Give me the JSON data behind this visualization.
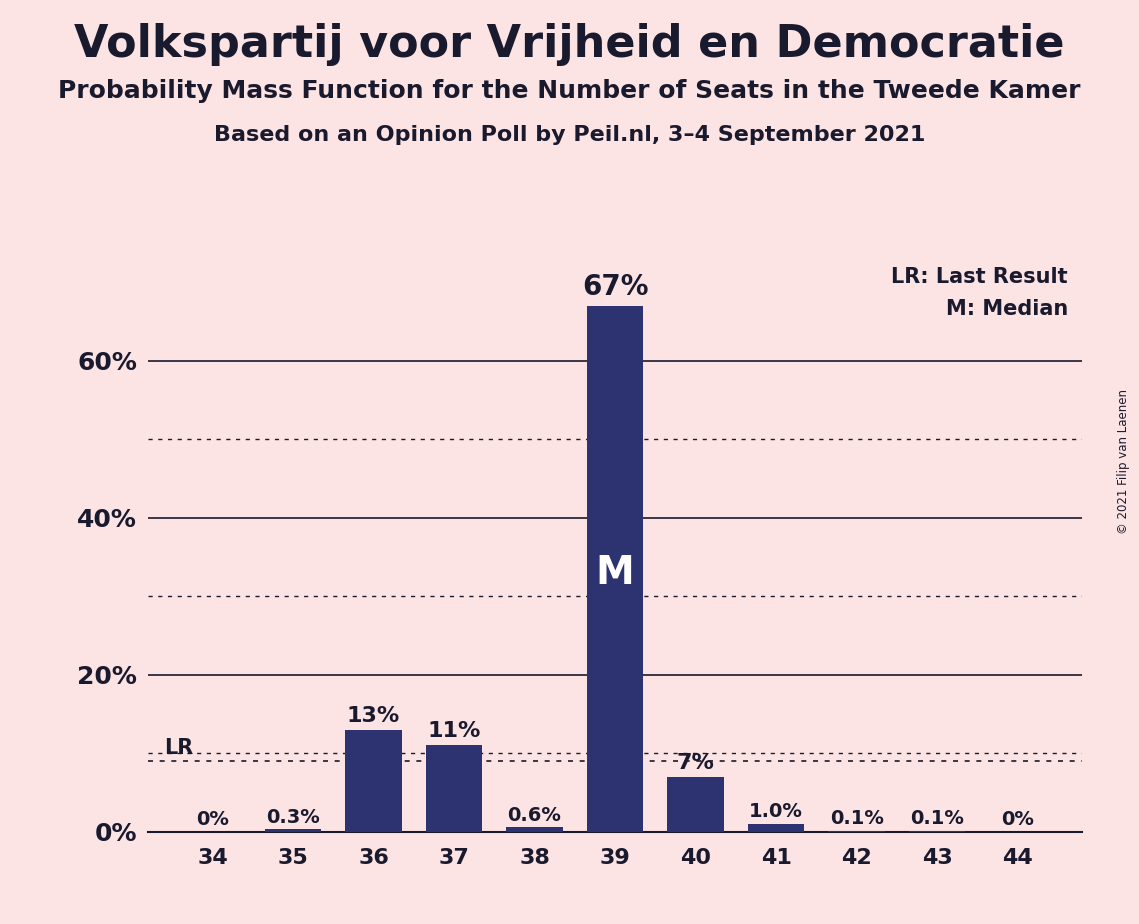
{
  "title": "Volkspartij voor Vrijheid en Democratie",
  "subtitle1": "Probability Mass Function for the Number of Seats in the Tweede Kamer",
  "subtitle2": "Based on an Opinion Poll by Peil.nl, 3–4 September 2021",
  "copyright": "© 2021 Filip van Laenen",
  "seats": [
    34,
    35,
    36,
    37,
    38,
    39,
    40,
    41,
    42,
    43,
    44
  ],
  "probabilities": [
    0.0,
    0.3,
    13.0,
    11.0,
    0.6,
    67.0,
    7.0,
    1.0,
    0.1,
    0.1,
    0.0
  ],
  "bar_color": "#2d3270",
  "background_color": "#fce4e4",
  "label_color": "#1a1a2e",
  "lr_value": 9.0,
  "median_seat": 39,
  "yticks_solid": [
    0,
    20,
    40,
    60
  ],
  "yticks_dotted": [
    10,
    30,
    50
  ],
  "ylim": [
    0,
    73
  ],
  "bar_labels": [
    "0%",
    "0.3%",
    "13%",
    "11%",
    "0.6%",
    "67%",
    "7%",
    "1.0%",
    "0.1%",
    "0.1%",
    "0%"
  ],
  "legend_lr": "LR: Last Result",
  "legend_m": "M: Median",
  "title_fontsize": 32,
  "subtitle1_fontsize": 18,
  "subtitle2_fontsize": 16
}
